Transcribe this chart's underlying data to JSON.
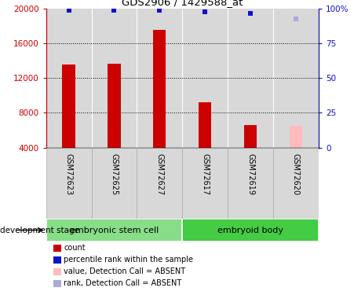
{
  "title": "GDS2906 / 1429588_at",
  "samples": [
    "GSM72623",
    "GSM72625",
    "GSM72627",
    "GSM72617",
    "GSM72619",
    "GSM72620"
  ],
  "counts": [
    13600,
    13700,
    17600,
    9200,
    6600,
    6500
  ],
  "count_colors": [
    "#cc0000",
    "#cc0000",
    "#cc0000",
    "#cc0000",
    "#cc0000",
    "#ffbbbb"
  ],
  "percentile_ranks": [
    99,
    99,
    99,
    98,
    97,
    93
  ],
  "rank_colors": [
    "#1111cc",
    "#1111cc",
    "#1111cc",
    "#1111cc",
    "#1111cc",
    "#aaaadd"
  ],
  "ylim_left": [
    4000,
    20000
  ],
  "ylim_right": [
    0,
    100
  ],
  "yticks_left": [
    4000,
    8000,
    12000,
    16000,
    20000
  ],
  "yticks_right": [
    0,
    25,
    50,
    75,
    100
  ],
  "groups": [
    {
      "label": "embryonic stem cell",
      "color": "#88dd88",
      "start": 0,
      "end": 3
    },
    {
      "label": "embryoid body",
      "color": "#44cc44",
      "start": 3,
      "end": 6
    }
  ],
  "group_header": "development stage",
  "bg_color": "#ffffff",
  "bar_bg_color": "#d8d8d8",
  "legend_items": [
    {
      "color": "#cc0000",
      "label": "count",
      "marker": "s"
    },
    {
      "color": "#1111cc",
      "label": "percentile rank within the sample",
      "marker": "s"
    },
    {
      "color": "#ffbbbb",
      "label": "value, Detection Call = ABSENT",
      "marker": "s"
    },
    {
      "color": "#aaaadd",
      "label": "rank, Detection Call = ABSENT",
      "marker": "s"
    }
  ]
}
